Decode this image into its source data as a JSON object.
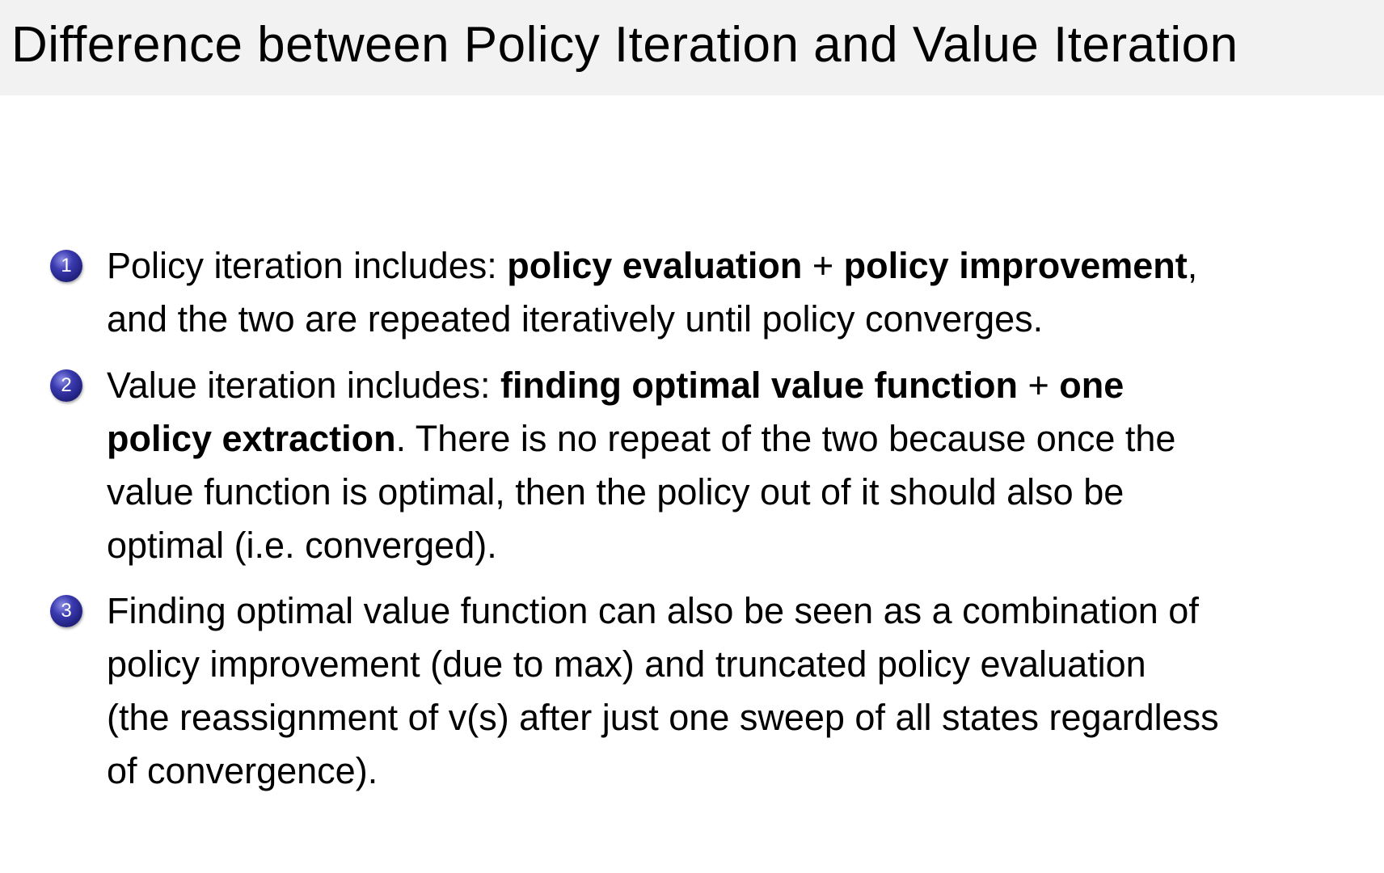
{
  "title": "Difference between Policy Iteration and Value Iteration",
  "bullet_color": "#1e1e7a",
  "title_bar_color": "#f2f2f2",
  "items": [
    {
      "number": "1",
      "lines": [
        [
          {
            "text": "Policy iteration includes: ",
            "bold": false
          },
          {
            "text": "policy evaluation",
            "bold": true
          },
          {
            "text": " + ",
            "bold": false
          },
          {
            "text": "policy improvement",
            "bold": true
          },
          {
            "text": ",",
            "bold": false
          }
        ],
        [
          {
            "text": "and the two are repeated iteratively until policy converges.",
            "bold": false
          }
        ]
      ]
    },
    {
      "number": "2",
      "lines": [
        [
          {
            "text": "Value iteration includes: ",
            "bold": false
          },
          {
            "text": "finding optimal value function",
            "bold": true
          },
          {
            "text": " + ",
            "bold": false
          },
          {
            "text": "one",
            "bold": true
          }
        ],
        [
          {
            "text": "policy extraction",
            "bold": true
          },
          {
            "text": ". There is no repeat of the two because once the",
            "bold": false
          }
        ],
        [
          {
            "text": "value function is optimal, then the policy out of it should also be",
            "bold": false
          }
        ],
        [
          {
            "text": "optimal (i.e. converged).",
            "bold": false
          }
        ]
      ]
    },
    {
      "number": "3",
      "lines": [
        [
          {
            "text": "Finding optimal value function can also be seen as a combination of",
            "bold": false
          }
        ],
        [
          {
            "text": "policy improvement (due to max) and truncated policy evaluation",
            "bold": false
          }
        ],
        [
          {
            "text": "(the reassignment of v(s) after just one sweep of all states regardless",
            "bold": false
          }
        ],
        [
          {
            "text": "of convergence).",
            "bold": false
          }
        ]
      ]
    }
  ]
}
